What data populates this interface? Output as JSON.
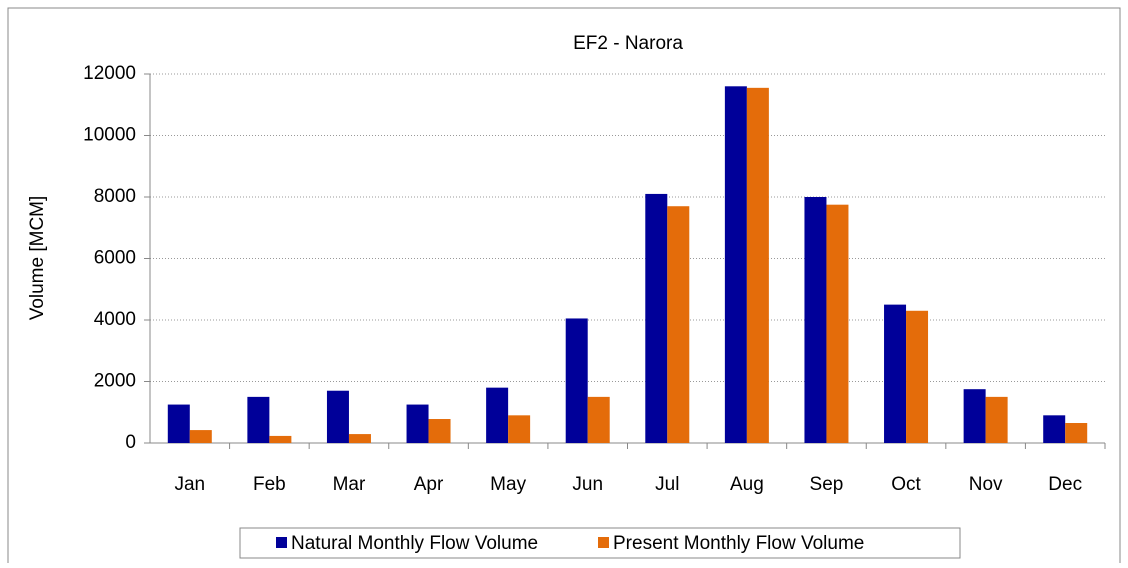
{
  "chart_data": {
    "type": "bar",
    "title": "EF2 - Narora",
    "y_label": "Volume [MCM]",
    "categories": [
      "Jan",
      "Feb",
      "Mar",
      "Apr",
      "May",
      "Jun",
      "Jul",
      "Aug",
      "Sep",
      "Oct",
      "Nov",
      "Dec"
    ],
    "series": [
      {
        "name": "Natural Monthly Flow Volume",
        "color": "#000099",
        "values": [
          1250,
          1500,
          1700,
          1250,
          1800,
          4050,
          8100,
          11600,
          8000,
          4500,
          1750,
          900
        ]
      },
      {
        "name": "Present Monthly Flow Volume",
        "color": "#e46c0a",
        "values": [
          420,
          230,
          290,
          780,
          900,
          1500,
          7700,
          11550,
          7750,
          4300,
          1500,
          650
        ]
      }
    ],
    "ylim": [
      0,
      12000
    ],
    "yticks": [
      0,
      2000,
      4000,
      6000,
      8000,
      10000,
      12000
    ],
    "grid": true,
    "legend": "bottom"
  }
}
